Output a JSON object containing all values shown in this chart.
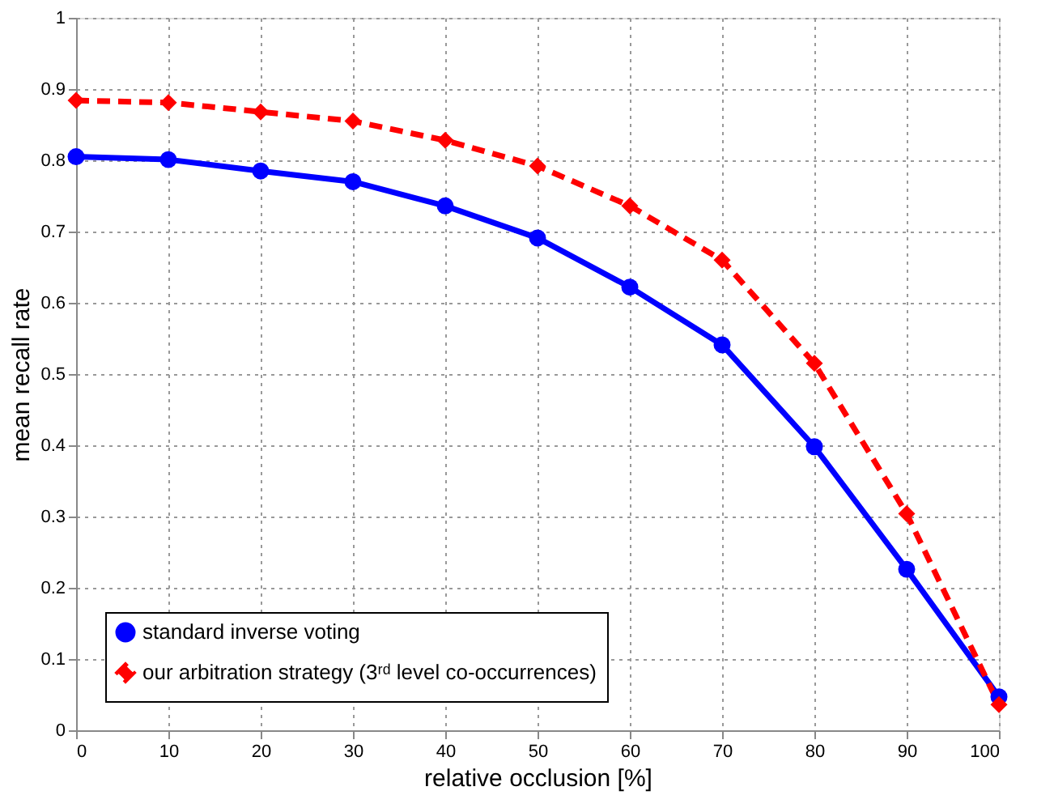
{
  "chart_data": {
    "type": "line",
    "xlabel": "relative occlusion [%]",
    "ylabel": "mean recall rate",
    "x": [
      0,
      10,
      20,
      30,
      40,
      50,
      60,
      70,
      80,
      90,
      100
    ],
    "xlim": [
      0,
      100
    ],
    "xticks": [
      0,
      10,
      20,
      30,
      40,
      50,
      60,
      70,
      80,
      90,
      100
    ],
    "ylim": [
      0,
      1
    ],
    "yticks": [
      0,
      0.1,
      0.2,
      0.3,
      0.4,
      0.5,
      0.6,
      0.7,
      0.8,
      0.9,
      1
    ],
    "grid": true,
    "legend": "bottom left",
    "series": [
      {
        "name": "standard inverse voting",
        "color": "#0000ff",
        "marker": "circle",
        "line_style": "solid",
        "values": [
          0.805,
          0.801,
          0.785,
          0.77,
          0.736,
          0.691,
          0.622,
          0.541,
          0.398,
          0.226,
          0.047
        ]
      },
      {
        "name": "our arbitration strategy (3ʳᵈ level co-occurrences)",
        "color": "#ff0000",
        "marker": "diamond",
        "line_style": "dashed",
        "values": [
          0.884,
          0.881,
          0.868,
          0.855,
          0.828,
          0.792,
          0.736,
          0.66,
          0.515,
          0.304,
          0.036
        ]
      }
    ]
  }
}
